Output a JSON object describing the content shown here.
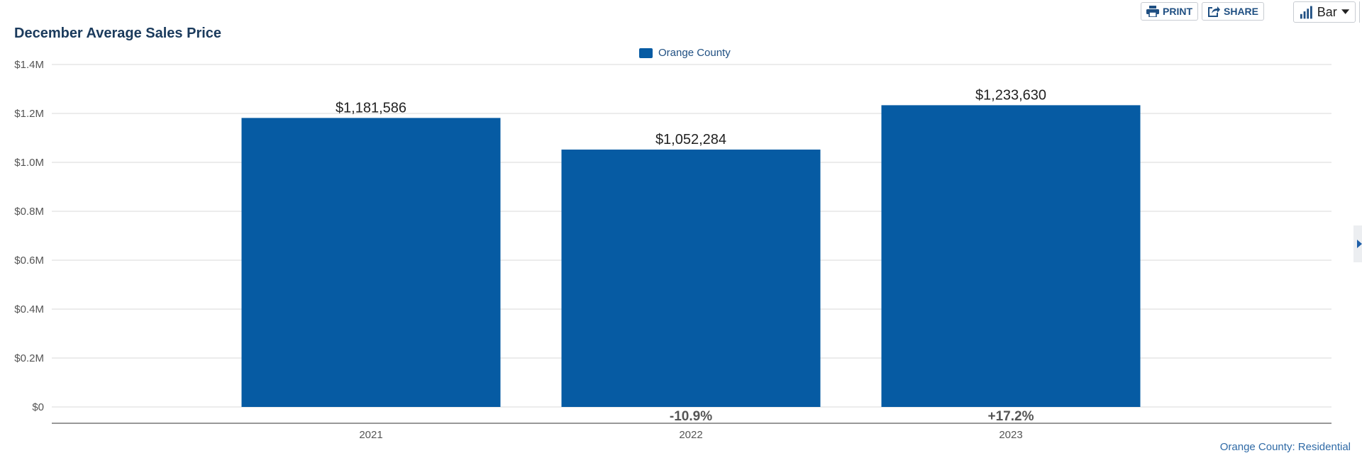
{
  "toolbar": {
    "print_label": "PRINT",
    "share_label": "SHARE",
    "chart_type_label": "Bar"
  },
  "footer": {
    "source_label": "Orange County: Residential"
  },
  "colors": {
    "bar": "#065ba3",
    "title": "#1a3a5c",
    "gridline": "#d9d9d9",
    "axis": "#777777"
  },
  "chart_data": {
    "type": "bar",
    "title": "December Average Sales Price",
    "xlabel": "",
    "ylabel": "",
    "categories": [
      "2021",
      "2022",
      "2023"
    ],
    "series": [
      {
        "name": "Orange County",
        "values": [
          1181586,
          1052284,
          1233630
        ]
      }
    ],
    "data_labels": [
      "$1,181,586",
      "$1,052,284",
      "$1,233,630"
    ],
    "change_labels": [
      "",
      "-10.9%",
      "+17.2%"
    ],
    "ylim": [
      0,
      1400000
    ],
    "yticks": [
      0,
      200000,
      400000,
      600000,
      800000,
      1000000,
      1200000,
      1400000
    ],
    "ytick_labels": [
      "$0",
      "$0.2M",
      "$0.4M",
      "$0.6M",
      "$0.8M",
      "$1.0M",
      "$1.2M",
      "$1.4M"
    ],
    "grid": true,
    "legend_position": "top-center"
  }
}
